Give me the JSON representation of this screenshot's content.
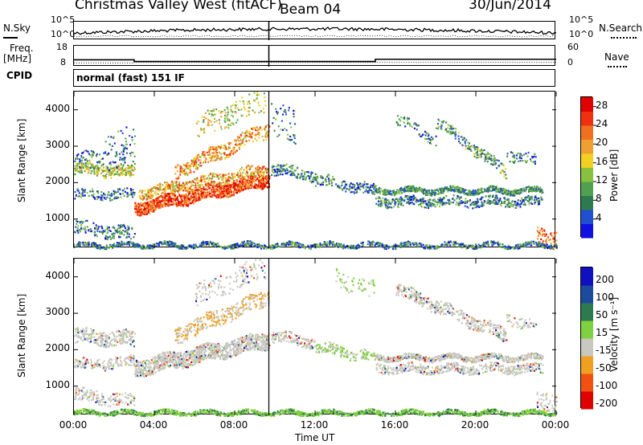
{
  "header": {
    "station": "Christmas Valley West (fitACF)",
    "beam": "Beam 04",
    "date": "30/Jun/2014"
  },
  "strips": {
    "nsky_label": "N.Sky",
    "nsearch_label": "N.Search",
    "noise_ticks_left": [
      "10^5",
      "10^0"
    ],
    "noise_ticks_right": [
      "10^5",
      "10^0"
    ],
    "freq_label_1": "Freq.",
    "freq_label_2": "[MHz]",
    "freq_ticks": [
      "18",
      "8"
    ],
    "nave_label": "Nave",
    "nave_ticks": [
      "60",
      "0"
    ],
    "cpid_label": "CPID",
    "cpid_value": "normal (fast) 151 IF"
  },
  "colors": {
    "power_scale": [
      "#1010e0",
      "#2050d0",
      "#2e7a50",
      "#4fa04f",
      "#88c040",
      "#f0d020",
      "#f0a030",
      "#f07020",
      "#f03010",
      "#e00000"
    ],
    "velocity_scale": [
      "#e00000",
      "#f05010",
      "#f0a020",
      "#c8c8c0",
      "#80d040",
      "#2e7a50",
      "#1c4a9c",
      "#1010c0"
    ]
  },
  "chart_data": [
    {
      "type": "heatmap",
      "name": "power",
      "ylabel": "Slant Range [km]",
      "yticks": [
        1000,
        2000,
        3000,
        4000
      ],
      "ylim": [
        200,
        4500
      ],
      "xlim": [
        "00:00",
        "24:00"
      ],
      "colorbar_label": "Power [dB]",
      "colorbar_ticks": [
        4,
        8,
        12,
        16,
        20,
        24,
        28
      ],
      "colorbar_range": [
        0,
        30
      ]
    },
    {
      "type": "heatmap",
      "name": "velocity",
      "ylabel": "Slant Range [km]",
      "yticks": [
        1000,
        2000,
        3000,
        4000
      ],
      "ylim": [
        200,
        4500
      ],
      "xlim": [
        "00:00",
        "24:00"
      ],
      "xticks": [
        "00:00",
        "04:00",
        "08:00",
        "12:00",
        "16:00",
        "20:00",
        "00:00"
      ],
      "xlabel": "Time UT",
      "colorbar_label": "Velocity [m s⁻¹]",
      "colorbar_ticks": [
        200,
        100,
        50,
        15,
        -15,
        -50,
        -100,
        -200
      ]
    }
  ]
}
